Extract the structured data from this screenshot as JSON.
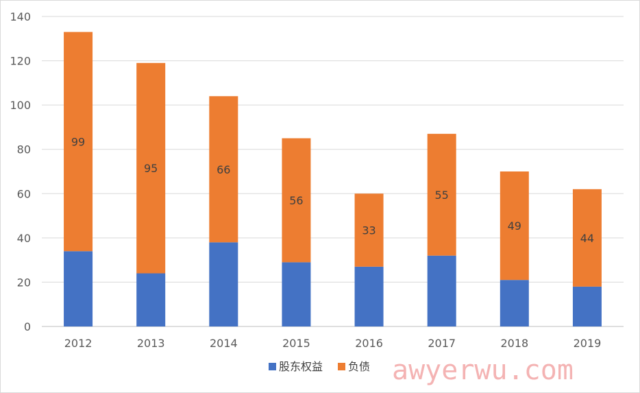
{
  "chart_data": {
    "type": "bar",
    "stacked": true,
    "categories": [
      "2012",
      "2013",
      "2014",
      "2015",
      "2016",
      "2017",
      "2018",
      "2019"
    ],
    "series": [
      {
        "name": "股东权益",
        "color": "#4472c4",
        "values": [
          34,
          24,
          38,
          29,
          27,
          32,
          21,
          18
        ]
      },
      {
        "name": "负债",
        "color": "#ed7d31",
        "values": [
          99,
          95,
          66,
          56,
          33,
          55,
          49,
          44
        ],
        "data_labels": true
      }
    ],
    "ylim": [
      0,
      140
    ],
    "yticks": [
      0,
      20,
      40,
      60,
      80,
      100,
      120,
      140
    ],
    "grid": true,
    "legend": "bottom-center"
  },
  "watermark": "awyerwu.com"
}
